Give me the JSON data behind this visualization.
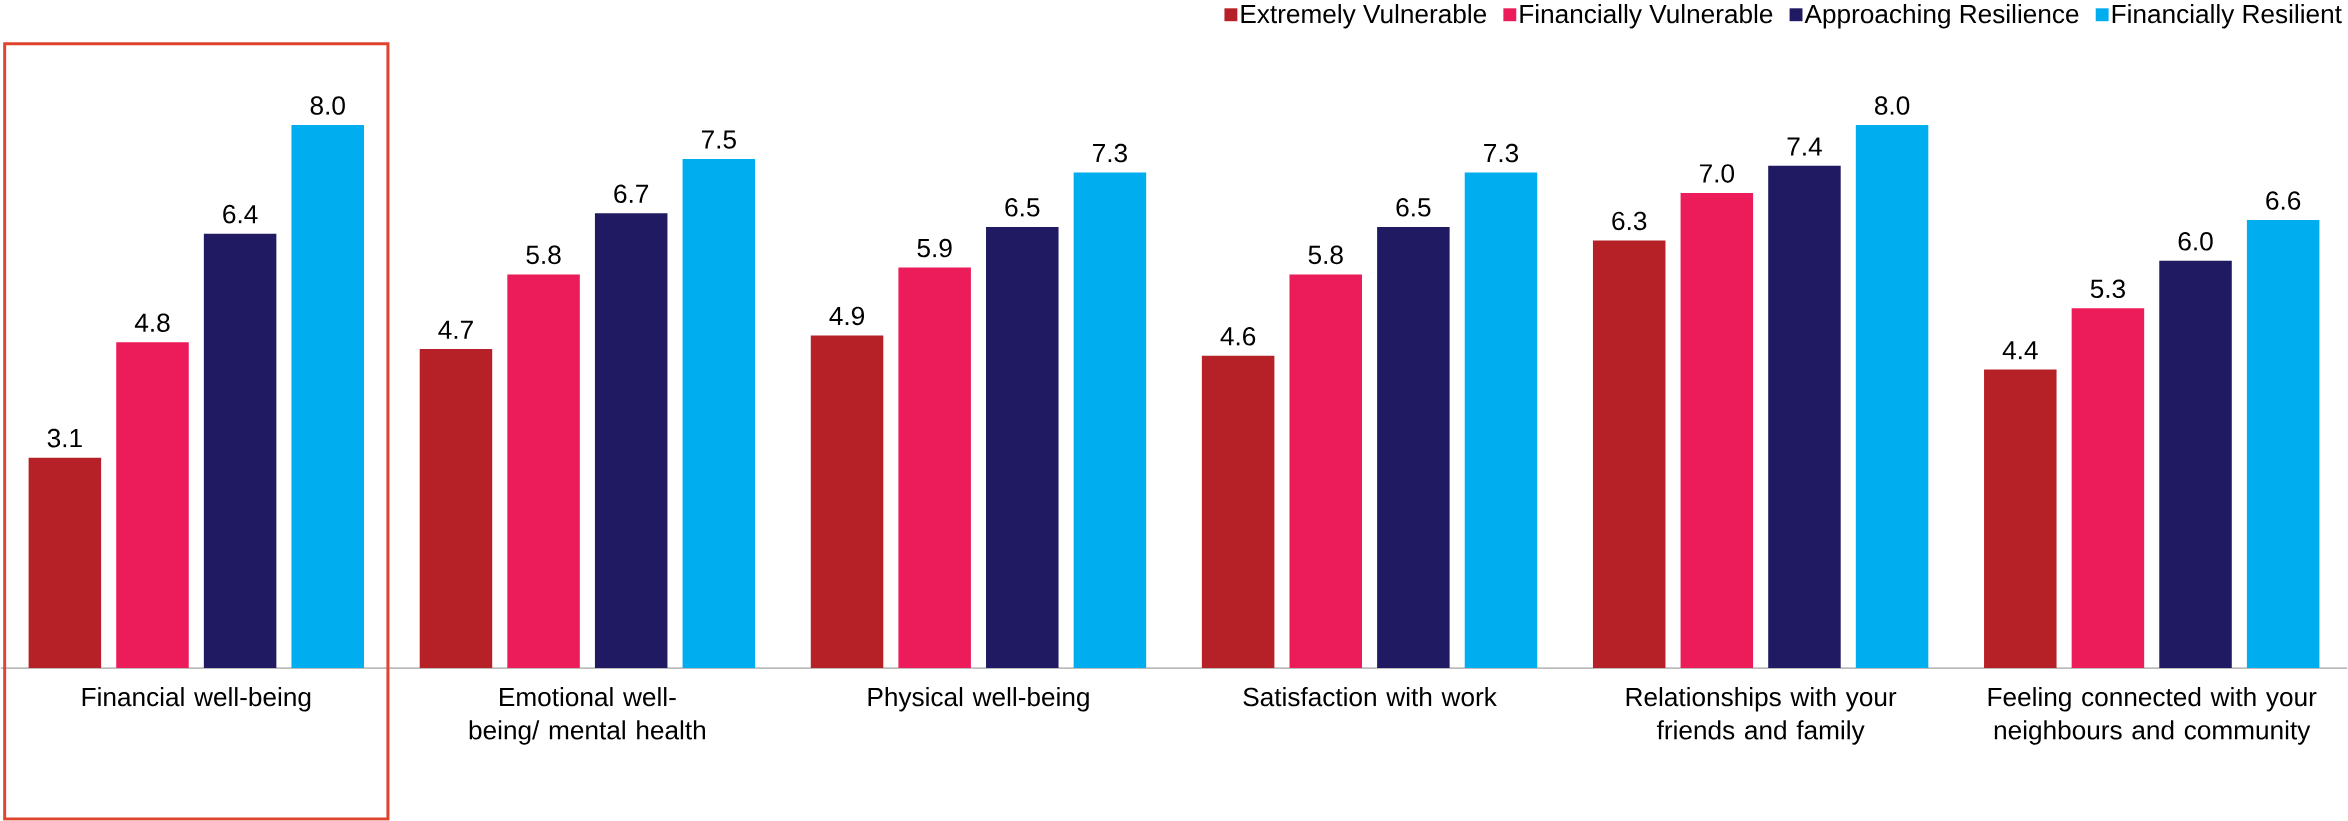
{
  "chart_data": {
    "type": "bar",
    "categories": [
      "Financial well-being",
      "Emotional well-being/ mental health",
      "Physical well-being",
      "Satisfaction with work",
      "Relationships with your friends and family",
      "Feeling connected with your neighbours and community"
    ],
    "series": [
      {
        "name": "Extremely Vulnerable",
        "color": "#b52126",
        "values": [
          3.1,
          4.7,
          4.9,
          4.6,
          6.3,
          4.4
        ],
        "value_labels": [
          "3.1",
          "4.7",
          "4.9",
          "4.6",
          "6.3",
          "4.4"
        ]
      },
      {
        "name": "Financially Vulnerable",
        "color": "#ec1b5a",
        "values": [
          4.8,
          5.8,
          5.9,
          5.8,
          7.0,
          5.3
        ],
        "value_labels": [
          "4.8",
          "5.8",
          "5.9",
          "5.8",
          "7.0",
          "5.3"
        ]
      },
      {
        "name": "Approaching Resilience",
        "color": "#1f1a62",
        "values": [
          6.4,
          6.7,
          6.5,
          6.5,
          7.4,
          6.0
        ],
        "value_labels": [
          "6.4",
          "6.7",
          "6.5",
          "6.5",
          "7.4",
          "6.0"
        ]
      },
      {
        "name": "Financially Resilient",
        "color": "#00aeef",
        "values": [
          8.0,
          7.5,
          7.3,
          7.3,
          8.0,
          6.6
        ],
        "value_labels": [
          "8.0",
          "7.5",
          "7.3",
          "7.3",
          "8.0",
          "6.6"
        ]
      }
    ],
    "legend": "top right"
  }
}
